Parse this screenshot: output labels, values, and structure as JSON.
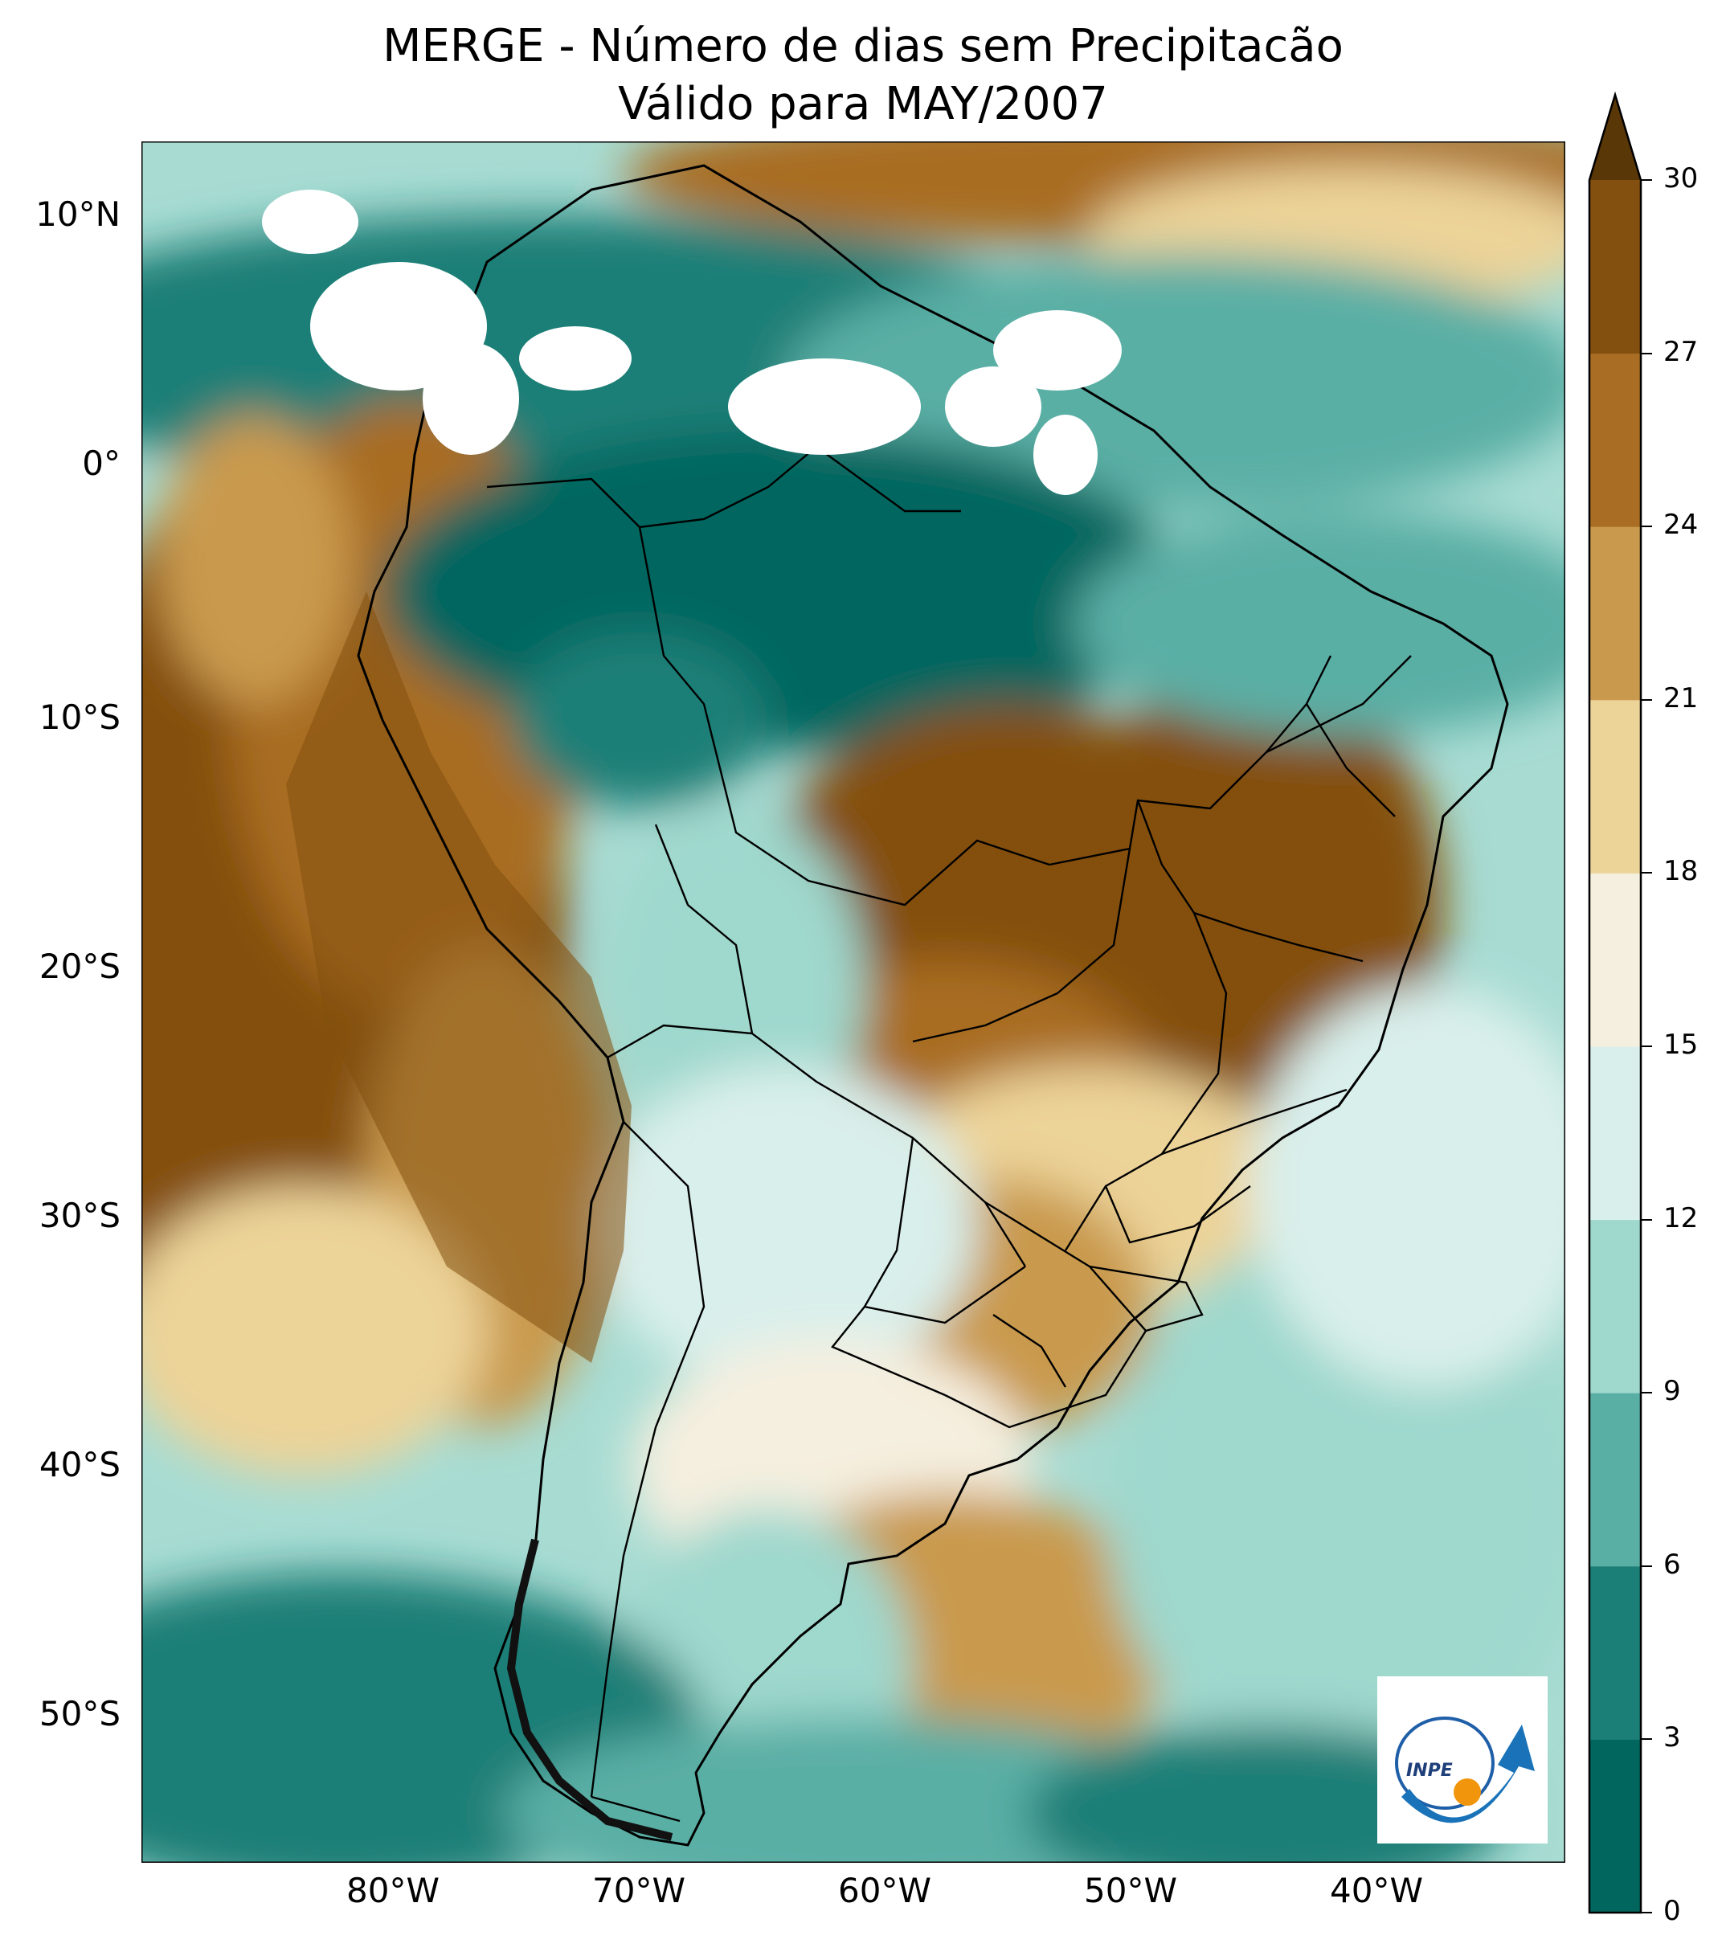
{
  "title": {
    "line1": "MERGE - Número de dias sem Precipitacão",
    "line2": "Válido para MAY/2007"
  },
  "axes": {
    "lat_ticks": [
      "10°N",
      "0°",
      "10°S",
      "20°S",
      "30°S",
      "40°S",
      "50°S"
    ],
    "lon_ticks": [
      "80°W",
      "70°W",
      "60°W",
      "50°W",
      "40°W"
    ]
  },
  "colorbar": {
    "ticks": [
      "0",
      "3",
      "6",
      "9",
      "12",
      "15",
      "18",
      "21",
      "24",
      "27",
      "30"
    ],
    "colors": [
      "#01665e",
      "#1b7f77",
      "#5aafa5",
      "#9fd8cd",
      "#d9efeb",
      "#f5efdf",
      "#ecd398",
      "#c99a4e",
      "#a96d24",
      "#84500f"
    ],
    "extend": "max",
    "extend_color": "#5a3707"
  },
  "map": {
    "type": "filled contour map",
    "extent": {
      "lon_min": -90,
      "lon_max": -32,
      "lat_min": -60,
      "lat_max": 13
    },
    "features": [
      "country borders",
      "state borders",
      "coastlines"
    ]
  },
  "logo": {
    "text": "INPE"
  }
}
